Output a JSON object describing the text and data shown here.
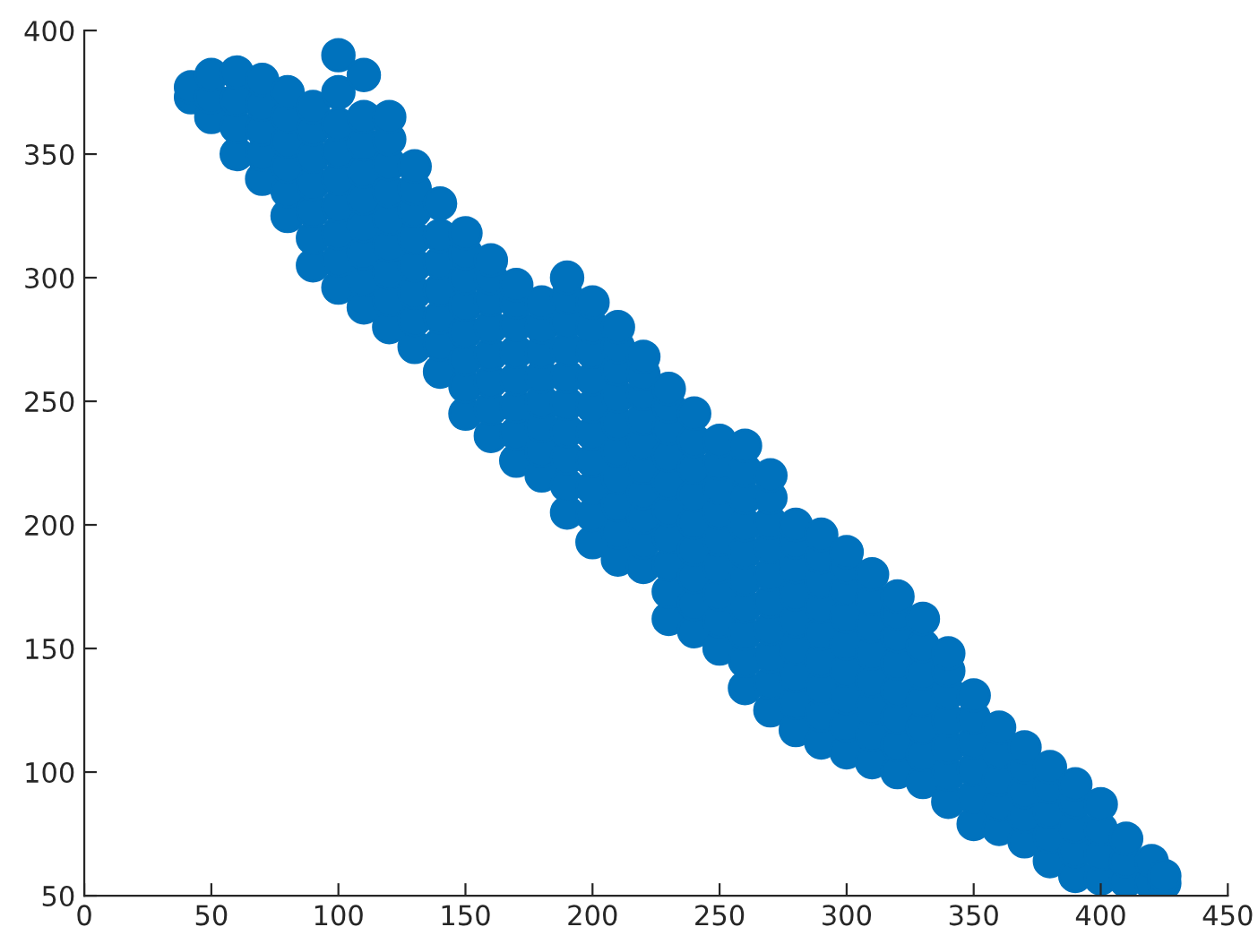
{
  "chart_data": {
    "type": "scatter",
    "marker": "circle",
    "grid": false,
    "xlim": [
      0,
      450
    ],
    "xticks": [
      0,
      50,
      100,
      150,
      200,
      250,
      300,
      350,
      400,
      450
    ],
    "ylim": [
      50,
      400
    ],
    "yticks": [
      50,
      100,
      150,
      200,
      250,
      300,
      350,
      400
    ],
    "series": [
      {
        "color": "#0072bd",
        "x": [
          42,
          42,
          50,
          50,
          50,
          60,
          60,
          60,
          60,
          70,
          70,
          70,
          70,
          70,
          80,
          80,
          80,
          80,
          80,
          80,
          90,
          90,
          90,
          90,
          90,
          90,
          90,
          100,
          100,
          100,
          100,
          100,
          100,
          100,
          100,
          100,
          110,
          110,
          110,
          110,
          110,
          110,
          110,
          110,
          110,
          120,
          120,
          120,
          120,
          120,
          120,
          120,
          120,
          120,
          130,
          130,
          130,
          130,
          130,
          130,
          130,
          130,
          140,
          140,
          140,
          140,
          140,
          140,
          140,
          150,
          150,
          150,
          150,
          150,
          150,
          150,
          150,
          160,
          160,
          160,
          160,
          160,
          160,
          160,
          160,
          170,
          170,
          170,
          170,
          170,
          170,
          170,
          170,
          180,
          180,
          180,
          180,
          180,
          180,
          180,
          180,
          190,
          190,
          190,
          190,
          190,
          190,
          190,
          190,
          190,
          190,
          200,
          200,
          200,
          200,
          200,
          200,
          200,
          200,
          200,
          200,
          210,
          210,
          210,
          210,
          210,
          210,
          210,
          210,
          210,
          210,
          220,
          220,
          220,
          220,
          220,
          220,
          220,
          220,
          220,
          220,
          230,
          230,
          230,
          230,
          230,
          230,
          230,
          230,
          230,
          230,
          240,
          240,
          240,
          240,
          240,
          240,
          240,
          240,
          240,
          250,
          250,
          250,
          250,
          250,
          250,
          250,
          250,
          250,
          260,
          260,
          260,
          260,
          260,
          260,
          260,
          260,
          260,
          260,
          270,
          270,
          270,
          270,
          270,
          270,
          270,
          270,
          270,
          270,
          280,
          280,
          280,
          280,
          280,
          280,
          280,
          280,
          280,
          290,
          290,
          290,
          290,
          290,
          290,
          290,
          290,
          290,
          300,
          300,
          300,
          300,
          300,
          300,
          300,
          300,
          300,
          310,
          310,
          310,
          310,
          310,
          310,
          310,
          310,
          320,
          320,
          320,
          320,
          320,
          320,
          320,
          320,
          330,
          330,
          330,
          330,
          330,
          330,
          330,
          340,
          340,
          340,
          340,
          340,
          340,
          340,
          350,
          350,
          350,
          350,
          350,
          350,
          360,
          360,
          360,
          360,
          360,
          370,
          370,
          370,
          370,
          370,
          380,
          380,
          380,
          380,
          380,
          390,
          390,
          390,
          390,
          390,
          400,
          400,
          400,
          400,
          410,
          410,
          410,
          420,
          420,
          425,
          425
        ],
        "values": [
          373,
          377,
          365,
          373,
          382,
          350,
          361,
          372,
          383,
          340,
          350,
          360,
          370,
          380,
          325,
          335,
          345,
          355,
          365,
          375,
          305,
          316,
          327,
          338,
          349,
          360,
          369,
          296,
          307,
          318,
          329,
          340,
          351,
          362,
          375,
          390,
          288,
          299,
          310,
          321,
          332,
          343,
          354,
          365,
          382,
          280,
          291,
          302,
          313,
          324,
          335,
          346,
          356,
          365,
          272,
          283,
          294,
          305,
          316,
          327,
          336,
          345,
          262,
          273,
          284,
          295,
          306,
          317,
          330,
          245,
          256,
          267,
          278,
          289,
          300,
          310,
          318,
          236,
          247,
          258,
          269,
          280,
          291,
          300,
          307,
          226,
          237,
          248,
          259,
          270,
          281,
          290,
          297,
          220,
          230,
          240,
          250,
          260,
          270,
          280,
          290,
          205,
          216,
          227,
          238,
          249,
          260,
          271,
          282,
          292,
          300,
          193,
          204,
          215,
          226,
          237,
          248,
          259,
          270,
          280,
          290,
          186,
          197,
          208,
          219,
          230,
          241,
          252,
          263,
          272,
          280,
          183,
          193,
          203,
          213,
          223,
          233,
          243,
          253,
          261,
          268,
          162,
          173,
          184,
          195,
          206,
          217,
          228,
          239,
          248,
          255,
          157,
          168,
          179,
          190,
          201,
          212,
          223,
          234,
          245,
          150,
          161,
          172,
          183,
          194,
          205,
          215,
          225,
          234,
          134,
          145,
          156,
          167,
          178,
          189,
          200,
          211,
          222,
          232,
          125,
          136,
          147,
          158,
          169,
          180,
          191,
          201,
          211,
          220,
          117,
          128,
          139,
          150,
          161,
          172,
          183,
          193,
          200,
          112,
          123,
          134,
          145,
          156,
          167,
          177,
          187,
          196,
          108,
          119,
          130,
          141,
          152,
          163,
          174,
          183,
          189,
          104,
          115,
          126,
          137,
          148,
          159,
          170,
          180,
          100,
          111,
          122,
          133,
          144,
          155,
          164,
          171,
          96,
          107,
          118,
          129,
          140,
          151,
          162,
          88,
          99,
          110,
          121,
          132,
          141,
          148,
          79,
          90,
          101,
          112,
          122,
          131,
          77,
          87,
          97,
          108,
          118,
          72,
          82,
          92,
          102,
          110,
          64,
          74,
          84,
          94,
          102,
          58,
          68,
          78,
          88,
          95,
          57,
          67,
          77,
          87,
          56,
          64,
          73,
          55,
          64,
          55,
          58
        ]
      }
    ]
  }
}
